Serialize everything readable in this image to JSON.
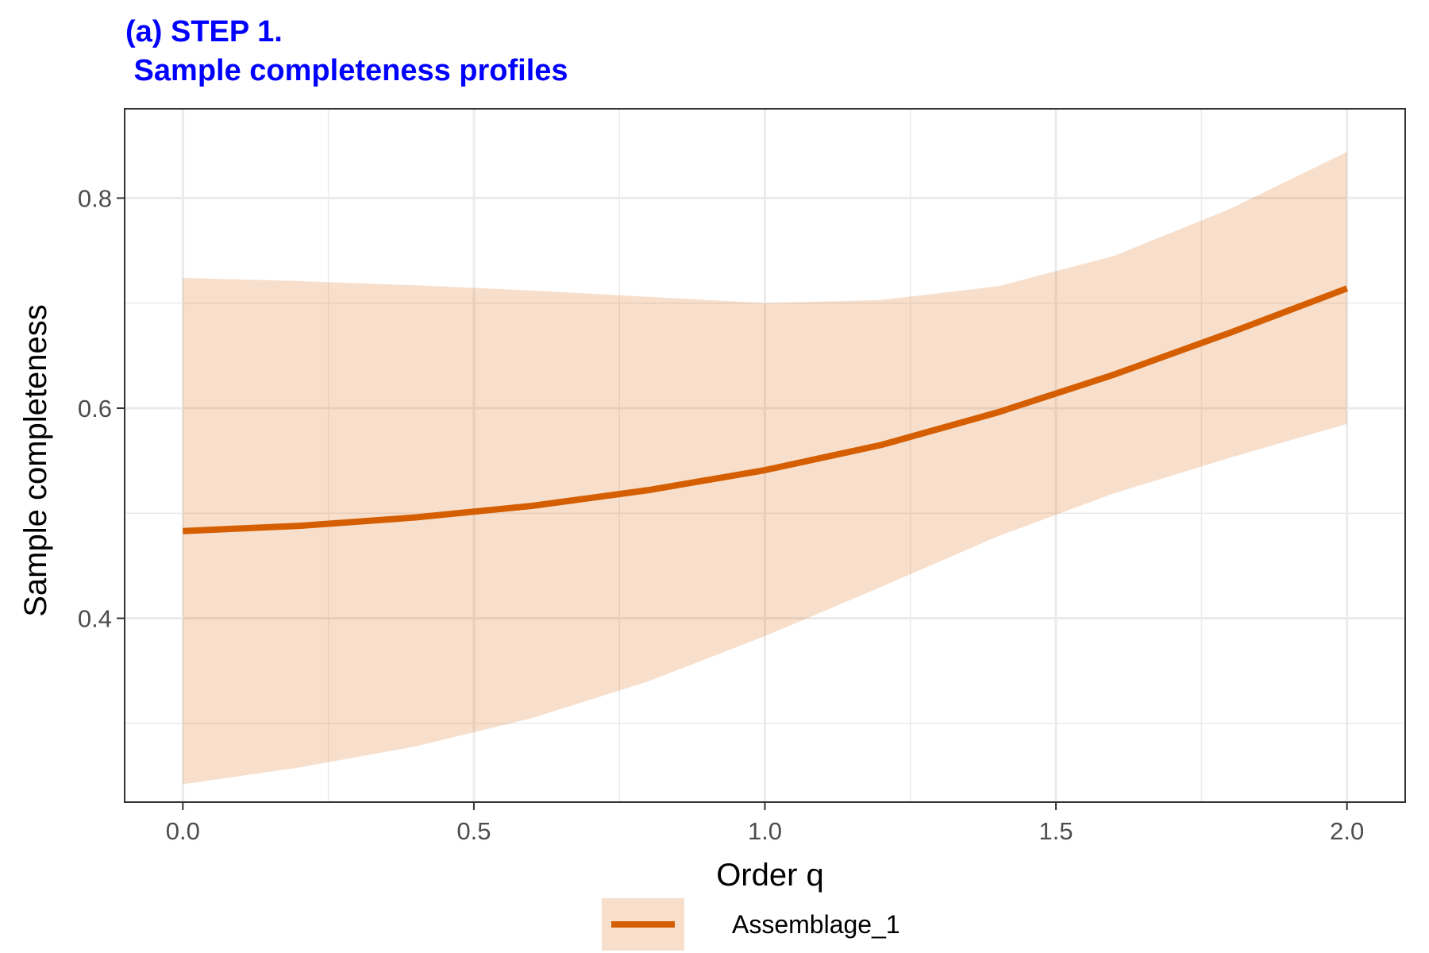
{
  "chart_data": {
    "type": "line",
    "title": "(a) STEP 1.",
    "subtitle": " Sample completeness profiles",
    "xlabel": "Order q",
    "ylabel": "Sample completeness",
    "xlim": [
      -0.1,
      2.1
    ],
    "ylim": [
      0.225,
      0.885
    ],
    "x_ticks": [
      0.0,
      0.5,
      1.0,
      1.5,
      2.0
    ],
    "x_tick_labels": [
      "0.0",
      "0.5",
      "1.0",
      "1.5",
      "2.0"
    ],
    "y_ticks": [
      0.4,
      0.6,
      0.8
    ],
    "y_tick_labels": [
      "0.4",
      "0.6",
      "0.8"
    ],
    "x_minor_ticks": [
      0.25,
      0.75,
      1.25,
      1.75
    ],
    "y_minor_ticks": [
      0.3,
      0.5,
      0.7
    ],
    "grid": true,
    "legend_position": "bottom",
    "series": [
      {
        "name": "Assemblage_1",
        "color": "#D55E00",
        "fill_color": "#D55E00",
        "x": [
          0.0,
          0.2,
          0.4,
          0.6,
          0.8,
          1.0,
          1.2,
          1.4,
          1.6,
          1.8,
          2.0
        ],
        "y": [
          0.483,
          0.488,
          0.496,
          0.507,
          0.522,
          0.541,
          0.565,
          0.596,
          0.632,
          0.672,
          0.714
        ],
        "lower": [
          0.242,
          0.258,
          0.278,
          0.305,
          0.34,
          0.383,
          0.43,
          0.478,
          0.519,
          0.553,
          0.585
        ],
        "upper": [
          0.724,
          0.721,
          0.717,
          0.712,
          0.706,
          0.7,
          0.703,
          0.716,
          0.745,
          0.79,
          0.844
        ]
      }
    ]
  }
}
